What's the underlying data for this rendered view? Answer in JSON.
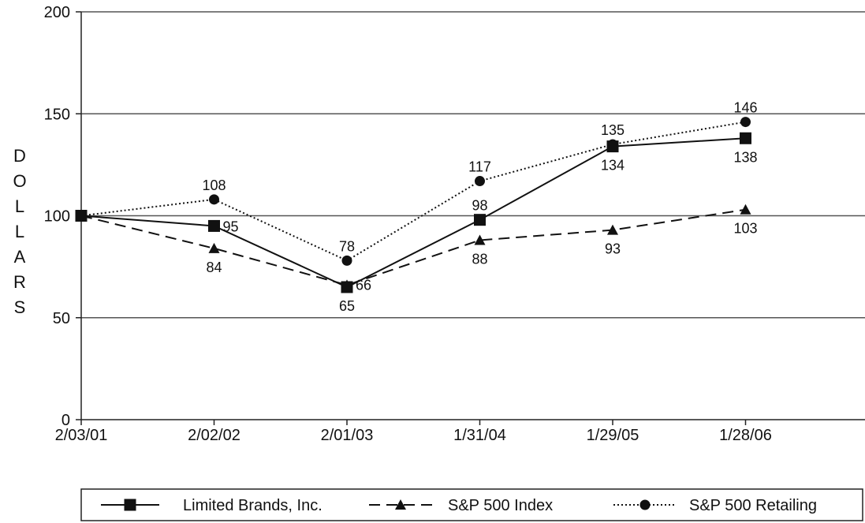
{
  "chart_data": {
    "type": "line",
    "title": "",
    "xlabel": "",
    "ylabel": "DOLLARS",
    "categories": [
      "2/03/01",
      "2/02/02",
      "2/01/03",
      "1/31/04",
      "1/29/05",
      "1/28/06"
    ],
    "ylim": [
      0,
      200
    ],
    "yticks": [
      0,
      50,
      100,
      150,
      200
    ],
    "grid": "horizontal",
    "legend_position": "bottom",
    "series": [
      {
        "name": "Limited Brands, Inc.",
        "values": [
          100,
          95,
          65,
          98,
          134,
          138
        ],
        "labels": [
          "",
          "95",
          "65",
          "98",
          "134",
          "138"
        ],
        "style": "solid",
        "marker": "square",
        "color": "#111111"
      },
      {
        "name": "S&P 500 Index",
        "values": [
          100,
          84,
          66,
          88,
          93,
          103
        ],
        "labels": [
          "",
          "84",
          "66",
          "88",
          "93",
          "103"
        ],
        "style": "dashed",
        "marker": "triangle",
        "color": "#111111"
      },
      {
        "name": "S&P 500 Retailing",
        "values": [
          100,
          108,
          78,
          117,
          135,
          146
        ],
        "labels": [
          "",
          "108",
          "78",
          "117",
          "135",
          "146"
        ],
        "style": "dotted",
        "marker": "circle",
        "color": "#111111"
      }
    ]
  }
}
